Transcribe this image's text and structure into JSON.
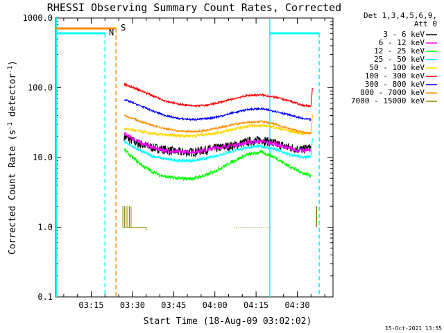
{
  "chart_data": {
    "type": "line",
    "title": "RHESSI Observing Summary Count Rates, Corrected",
    "xlabel": "Start Time (18-Aug-09 03:02:02)",
    "ylabel_main": "Corrected Count Rate (s",
    "ylabel_sup1": "-1",
    "ylabel_mid": " detector",
    "ylabel_sup2": "-1",
    "ylabel_end": ")",
    "yscale": "log",
    "ylim": [
      0.1,
      1000
    ],
    "xlim_minutes": [
      0,
      101
    ],
    "x_ticks": [
      {
        "label": "03:15",
        "t": 13
      },
      {
        "label": "03:30",
        "t": 28
      },
      {
        "label": "03:45",
        "t": 43
      },
      {
        "label": "04:00",
        "t": 58
      },
      {
        "label": "04:15",
        "t": 73
      },
      {
        "label": "04:30",
        "t": 88
      }
    ],
    "y_ticks": [
      {
        "label": "0.1",
        "v": 0.1
      },
      {
        "label": "1.0",
        "v": 1
      },
      {
        "label": "10.0",
        "v": 10
      },
      {
        "label": "100.0",
        "v": 100
      },
      {
        "label": "1000.0",
        "v": 1000
      }
    ],
    "legend_header": [
      "Det 1,3,4,5,6,9,",
      "Att 0"
    ],
    "series": [
      {
        "name": "3 - 6 keV",
        "color": "#000000",
        "values": [
          [
            25,
            20
          ],
          [
            30,
            16
          ],
          [
            35,
            14
          ],
          [
            40,
            13
          ],
          [
            45,
            12
          ],
          [
            50,
            12
          ],
          [
            55,
            13
          ],
          [
            60,
            14
          ],
          [
            65,
            15
          ],
          [
            70,
            17
          ],
          [
            75,
            18
          ],
          [
            80,
            16
          ],
          [
            85,
            14
          ],
          [
            90,
            13
          ],
          [
            93,
            14
          ]
        ],
        "noise": 0.15
      },
      {
        "name": "6 - 12 keV",
        "color": "#ff00ff",
        "values": [
          [
            25,
            22
          ],
          [
            30,
            17
          ],
          [
            35,
            14
          ],
          [
            40,
            12.5
          ],
          [
            45,
            12
          ],
          [
            50,
            12
          ],
          [
            55,
            13
          ],
          [
            60,
            14
          ],
          [
            65,
            15
          ],
          [
            70,
            16.5
          ],
          [
            75,
            17
          ],
          [
            80,
            15.5
          ],
          [
            85,
            13.5
          ],
          [
            90,
            12.5
          ],
          [
            93,
            13
          ]
        ],
        "noise": 0.07
      },
      {
        "name": "12 - 25 keV",
        "color": "#00ff00",
        "values": [
          [
            25,
            13
          ],
          [
            28,
            10
          ],
          [
            32,
            7.5
          ],
          [
            36,
            6
          ],
          [
            40,
            5.3
          ],
          [
            45,
            5
          ],
          [
            50,
            5
          ],
          [
            55,
            5.6
          ],
          [
            60,
            7
          ],
          [
            65,
            9
          ],
          [
            70,
            11
          ],
          [
            75,
            12
          ],
          [
            80,
            10
          ],
          [
            85,
            7.5
          ],
          [
            90,
            6
          ],
          [
            93,
            5.5
          ]
        ],
        "noise": 0.06
      },
      {
        "name": "25 - 50 keV",
        "color": "#00ffff",
        "values": [
          [
            25,
            17
          ],
          [
            30,
            13
          ],
          [
            35,
            10.5
          ],
          [
            40,
            9.5
          ],
          [
            45,
            9
          ],
          [
            50,
            9
          ],
          [
            55,
            9.7
          ],
          [
            60,
            11
          ],
          [
            65,
            12.5
          ],
          [
            70,
            14
          ],
          [
            75,
            14.5
          ],
          [
            80,
            13
          ],
          [
            85,
            11
          ],
          [
            90,
            10
          ],
          [
            93,
            10.5
          ]
        ],
        "noise": 0.05
      },
      {
        "name": "50 - 100 keV",
        "color": "#ffd700",
        "values": [
          [
            25,
            26
          ],
          [
            30,
            24
          ],
          [
            35,
            22
          ],
          [
            40,
            21
          ],
          [
            45,
            20.5
          ],
          [
            50,
            20.5
          ],
          [
            55,
            21.5
          ],
          [
            60,
            23
          ],
          [
            65,
            25.5
          ],
          [
            70,
            28
          ],
          [
            75,
            29
          ],
          [
            80,
            27
          ],
          [
            85,
            24
          ],
          [
            90,
            22
          ],
          [
            93,
            23
          ]
        ],
        "noise": 0.05
      },
      {
        "name": "100 - 300 keV",
        "color": "#ff0000",
        "values": [
          [
            25,
            112
          ],
          [
            30,
            95
          ],
          [
            35,
            78
          ],
          [
            40,
            65
          ],
          [
            45,
            58
          ],
          [
            50,
            55
          ],
          [
            55,
            56
          ],
          [
            60,
            62
          ],
          [
            65,
            70
          ],
          [
            70,
            78
          ],
          [
            75,
            79
          ],
          [
            80,
            73
          ],
          [
            85,
            65
          ],
          [
            90,
            56
          ],
          [
            93,
            55
          ]
        ],
        "noise": 0.03
      },
      {
        "name": "300 - 800 keV",
        "color": "#0000ff",
        "values": [
          [
            25,
            68
          ],
          [
            30,
            57
          ],
          [
            35,
            47
          ],
          [
            40,
            40
          ],
          [
            45,
            36
          ],
          [
            50,
            35
          ],
          [
            55,
            36
          ],
          [
            60,
            39
          ],
          [
            65,
            44
          ],
          [
            70,
            49
          ],
          [
            75,
            50
          ],
          [
            80,
            46
          ],
          [
            85,
            41
          ],
          [
            90,
            36
          ],
          [
            93,
            35
          ]
        ],
        "noise": 0.03
      },
      {
        "name": "800 - 7000 keV",
        "color": "#ff8c00",
        "values": [
          [
            25,
            40
          ],
          [
            30,
            34
          ],
          [
            35,
            29
          ],
          [
            40,
            26
          ],
          [
            45,
            24
          ],
          [
            50,
            23.5
          ],
          [
            55,
            24.5
          ],
          [
            60,
            27
          ],
          [
            65,
            30
          ],
          [
            70,
            32
          ],
          [
            75,
            33
          ],
          [
            80,
            30
          ],
          [
            85,
            26
          ],
          [
            90,
            23
          ],
          [
            93,
            22
          ]
        ],
        "noise": 0.03
      },
      {
        "name": "7000 - 15000 keV",
        "color": "#8b8000",
        "values": [
          [
            25,
            1.05
          ],
          [
            28,
            1.03
          ],
          [
            30,
            1.0
          ]
        ],
        "noise": 0.01
      }
    ],
    "annotations": [
      {
        "text": "S",
        "color": "#ff8c00"
      },
      {
        "text": "N",
        "color": "#00ffff"
      }
    ],
    "footer_date": "15-Oct-2021 13:55"
  }
}
